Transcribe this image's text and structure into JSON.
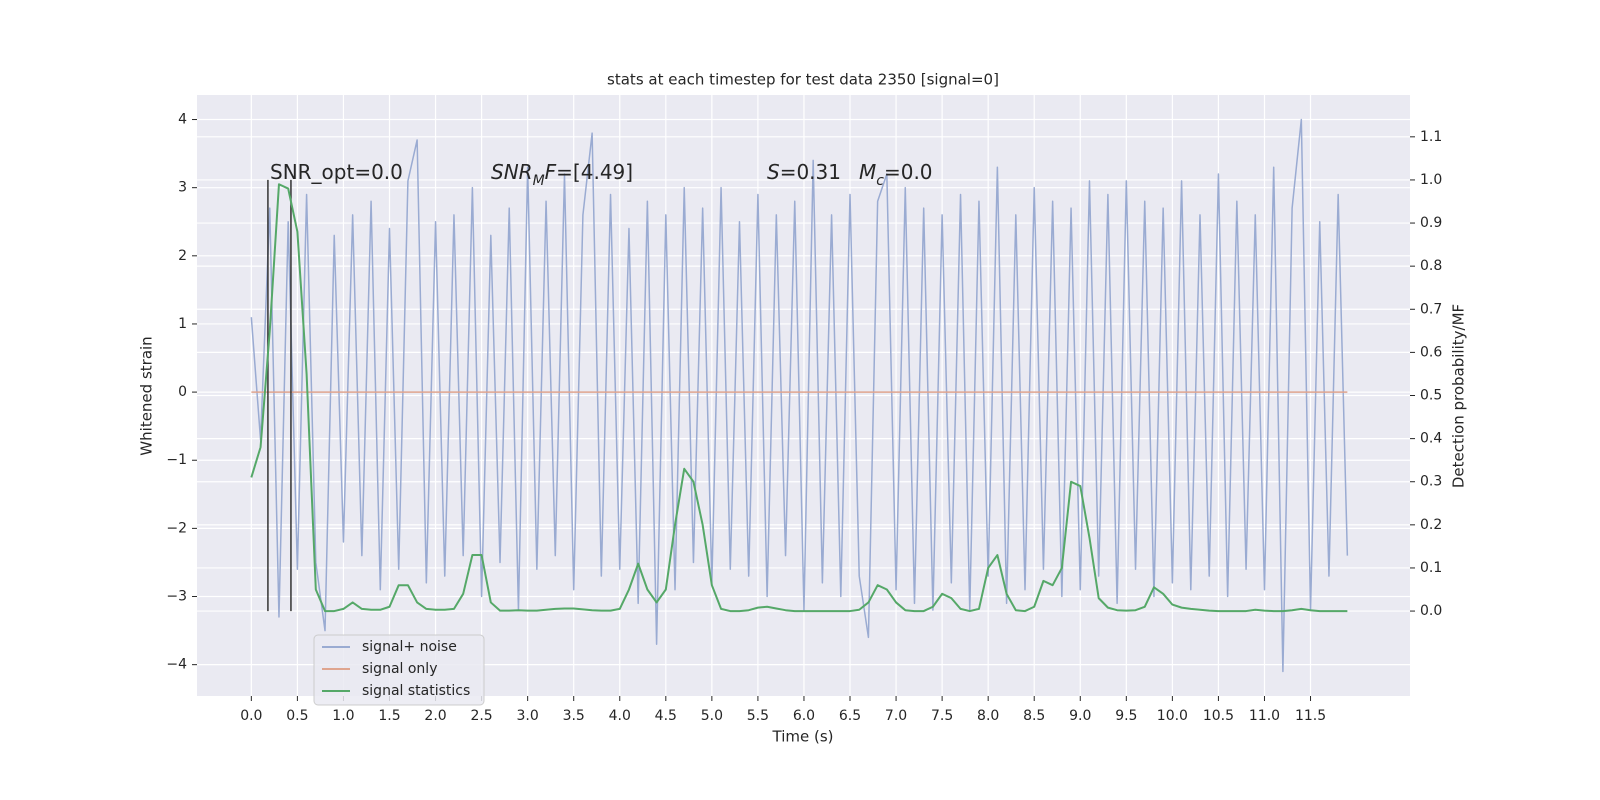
{
  "chart_data": {
    "type": "line",
    "title": "stats at each timestep for test data 2350 [signal=0]",
    "x_label": "Time (s)",
    "y_label": "Whitened strain",
    "y2_label": "Detection probability/MF",
    "x": [
      0,
      0.1,
      0.2,
      0.3,
      0.4,
      0.5,
      0.6,
      0.7,
      0.8,
      0.9,
      1,
      1.1,
      1.2,
      1.3,
      1.4,
      1.5,
      1.6,
      1.7,
      1.8,
      1.9,
      2,
      2.1,
      2.2,
      2.3,
      2.4,
      2.5,
      2.6,
      2.7,
      2.8,
      2.9,
      3,
      3.1,
      3.2,
      3.3,
      3.4,
      3.5,
      3.6,
      3.7,
      3.8,
      3.9,
      4,
      4.1,
      4.2,
      4.3,
      4.4,
      4.5,
      4.6,
      4.7,
      4.8,
      4.9,
      5,
      5.1,
      5.2,
      5.3,
      5.4,
      5.5,
      5.6,
      5.7,
      5.8,
      5.9,
      6,
      6.1,
      6.2,
      6.3,
      6.4,
      6.5,
      6.6,
      6.7,
      6.8,
      6.9,
      7,
      7.1,
      7.2,
      7.3,
      7.4,
      7.5,
      7.6,
      7.7,
      7.8,
      7.9,
      8,
      8.1,
      8.2,
      8.3,
      8.4,
      8.5,
      8.6,
      8.7,
      8.8,
      8.9,
      9,
      9.1,
      9.2,
      9.3,
      9.4,
      9.5,
      9.6,
      9.7,
      9.8,
      9.9,
      10,
      10.1,
      10.2,
      10.3,
      10.4,
      10.5,
      10.6,
      10.7,
      10.8,
      10.9,
      11,
      11.1,
      11.2,
      11.3,
      11.4,
      11.5,
      11.6,
      11.7,
      11.8,
      11.9
    ],
    "series": [
      {
        "name": "signal+ noise",
        "color": "#9aabd2",
        "values": [
          1.1,
          -0.7,
          2.7,
          -3.3,
          2.5,
          -2.6,
          2.9,
          -2.5,
          -3.5,
          2.3,
          -2.2,
          2.6,
          -2.4,
          2.8,
          -2.9,
          2.4,
          -2.6,
          3.1,
          3.7,
          -2.8,
          2.5,
          -2.7,
          2.6,
          -2.4,
          3.0,
          -3.0,
          2.3,
          -2.5,
          2.7,
          -3.2,
          3.3,
          -2.6,
          2.8,
          -2.4,
          3.2,
          -2.9,
          2.6,
          3.8,
          -2.7,
          2.9,
          -2.6,
          2.4,
          -3.1,
          2.8,
          -3.7,
          2.6,
          -2.9,
          3.0,
          -2.5,
          2.7,
          -2.8,
          3.0,
          -2.6,
          2.5,
          -2.7,
          2.9,
          -3.0,
          2.6,
          -2.4,
          2.8,
          -3.2,
          3.4,
          -2.8,
          2.6,
          -3.0,
          2.9,
          -2.7,
          -3.6,
          2.8,
          3.2,
          -2.9,
          3.0,
          -3.1,
          2.7,
          -3.2,
          2.6,
          -2.8,
          2.9,
          -3.2,
          2.8,
          -2.7,
          3.3,
          -3.1,
          2.6,
          -2.9,
          3.0,
          -2.6,
          2.8,
          -3.0,
          2.7,
          -2.9,
          3.1,
          -2.7,
          2.9,
          -3.1,
          3.1,
          -2.6,
          2.8,
          -3.0,
          2.7,
          -2.8,
          3.1,
          -2.9,
          2.6,
          -2.7,
          3.2,
          -3.0,
          2.8,
          -2.6,
          2.6,
          -2.9,
          3.3,
          -4.1,
          2.7,
          4.0,
          -3.2,
          2.5,
          -2.7,
          2.9,
          -2.4
        ]
      },
      {
        "name": "signal only",
        "color": "#dfa58f",
        "values": [
          0,
          0,
          0,
          0,
          0,
          0,
          0,
          0,
          0,
          0,
          0,
          0,
          0,
          0,
          0,
          0,
          0,
          0,
          0,
          0,
          0,
          0,
          0,
          0,
          0,
          0,
          0,
          0,
          0,
          0,
          0,
          0,
          0,
          0,
          0,
          0,
          0,
          0,
          0,
          0,
          0,
          0,
          0,
          0,
          0,
          0,
          0,
          0,
          0,
          0,
          0,
          0,
          0,
          0,
          0,
          0,
          0,
          0,
          0,
          0,
          0,
          0,
          0,
          0,
          0,
          0,
          0,
          0,
          0,
          0,
          0,
          0,
          0,
          0,
          0,
          0,
          0,
          0,
          0,
          0,
          0,
          0,
          0,
          0,
          0,
          0,
          0,
          0,
          0,
          0,
          0,
          0,
          0,
          0,
          0,
          0,
          0,
          0,
          0,
          0,
          0,
          0,
          0,
          0,
          0,
          0,
          0,
          0,
          0,
          0,
          0,
          0,
          0,
          0,
          0,
          0,
          0,
          0,
          0,
          0
        ]
      },
      {
        "name": "signal statistics",
        "color": "#55a868",
        "axis": "y2",
        "values": [
          0.31,
          0.38,
          0.65,
          0.99,
          0.98,
          0.88,
          0.55,
          0.05,
          0.0,
          0.0,
          0.005,
          0.02,
          0.005,
          0.003,
          0.003,
          0.01,
          0.06,
          0.06,
          0.02,
          0.005,
          0.003,
          0.003,
          0.005,
          0.04,
          0.13,
          0.13,
          0.02,
          0.001,
          0.001,
          0.002,
          0.001,
          0.001,
          0.003,
          0.005,
          0.006,
          0.006,
          0.004,
          0.002,
          0.001,
          0.001,
          0.005,
          0.05,
          0.11,
          0.05,
          0.02,
          0.05,
          0.2,
          0.33,
          0.3,
          0.2,
          0.06,
          0.005,
          0.0,
          0.0,
          0.002,
          0.008,
          0.01,
          0.006,
          0.002,
          0.0,
          0.0,
          0.0,
          0.0,
          0.0,
          0.0,
          0.0,
          0.003,
          0.02,
          0.06,
          0.05,
          0.02,
          0.002,
          0.0,
          0.0,
          0.01,
          0.04,
          0.03,
          0.005,
          0.0,
          0.005,
          0.1,
          0.13,
          0.04,
          0.002,
          0.0,
          0.01,
          0.07,
          0.06,
          0.1,
          0.3,
          0.29,
          0.17,
          0.03,
          0.008,
          0.002,
          0.001,
          0.002,
          0.01,
          0.055,
          0.04,
          0.015,
          0.008,
          0.005,
          0.003,
          0.001,
          0.0,
          0.0,
          0.0,
          0.0,
          0.003,
          0.001,
          0.0,
          0.0,
          0.002,
          0.005,
          0.002,
          0.0,
          0.0,
          0.0,
          0.0
        ]
      }
    ],
    "vlines": {
      "x": [
        0.18,
        0.43
      ],
      "y2": [
        0,
        1.0
      ],
      "color": "#333333"
    },
    "annotations": [
      {
        "parts": [
          {
            "text": "SNR_opt=0.0"
          }
        ]
      },
      {
        "parts": [
          {
            "text": "SNR",
            "style": "italic"
          },
          {
            "text": "M",
            "style": "sub"
          },
          {
            "text": "F",
            "style": "italic"
          },
          {
            "text": "=[4.49]"
          }
        ]
      },
      {
        "parts": [
          {
            "text": "S",
            "style": "italic"
          },
          {
            "text": "=0.31"
          }
        ]
      },
      {
        "parts": [
          {
            "text": "M",
            "style": "italic"
          },
          {
            "text": "c",
            "style": "sub"
          },
          {
            "text": "=0.0"
          }
        ]
      }
    ],
    "xlim": [
      -0.59,
      12.58
    ],
    "ylim": [
      -4.46,
      4.36
    ],
    "y2lim": [
      -0.197,
      1.197
    ],
    "xticks": [
      {
        "value": 0,
        "label": "0.0"
      },
      {
        "value": 0.5,
        "label": "0.5"
      },
      {
        "value": 1,
        "label": "1.0"
      },
      {
        "value": 1.5,
        "label": "1.5"
      },
      {
        "value": 2,
        "label": "2.0"
      },
      {
        "value": 2.5,
        "label": "2.5"
      },
      {
        "value": 3,
        "label": "3.0"
      },
      {
        "value": 3.5,
        "label": "3.5"
      },
      {
        "value": 4,
        "label": "4.0"
      },
      {
        "value": 4.5,
        "label": "4.5"
      },
      {
        "value": 5,
        "label": "5.0"
      },
      {
        "value": 5.5,
        "label": "5.5"
      },
      {
        "value": 6,
        "label": "6.0"
      },
      {
        "value": 6.5,
        "label": "6.5"
      },
      {
        "value": 7,
        "label": "7.0"
      },
      {
        "value": 7.5,
        "label": "7.5"
      },
      {
        "value": 8,
        "label": "8.0"
      },
      {
        "value": 8.5,
        "label": "8.5"
      },
      {
        "value": 9,
        "label": "9.0"
      },
      {
        "value": 9.5,
        "label": "9.5"
      },
      {
        "value": 10,
        "label": "10.0"
      },
      {
        "value": 10.5,
        "label": "10.5"
      },
      {
        "value": 11,
        "label": "11.0"
      },
      {
        "value": 11.5,
        "label": "11.5"
      }
    ],
    "yticks": [
      {
        "value": -4,
        "label": "−4"
      },
      {
        "value": -3,
        "label": "−3"
      },
      {
        "value": -2,
        "label": "−2"
      },
      {
        "value": -1,
        "label": "−1"
      },
      0,
      1,
      2,
      3,
      4
    ],
    "y2ticks": [
      {
        "value": 0,
        "label": "0.0"
      },
      {
        "value": 0.1,
        "label": "0.1"
      },
      {
        "value": 0.2,
        "label": "0.2"
      },
      {
        "value": 0.3,
        "label": "0.3"
      },
      {
        "value": 0.4,
        "label": "0.4"
      },
      {
        "value": 0.5,
        "label": "0.5"
      },
      {
        "value": 0.6,
        "label": "0.6"
      },
      {
        "value": 0.7,
        "label": "0.7"
      },
      {
        "value": 0.8,
        "label": "0.8"
      },
      {
        "value": 0.9,
        "label": "0.9"
      },
      {
        "value": 1,
        "label": "1.0"
      },
      {
        "value": 1.1,
        "label": "1.1"
      }
    ],
    "grid": true,
    "legend": "lower left"
  }
}
